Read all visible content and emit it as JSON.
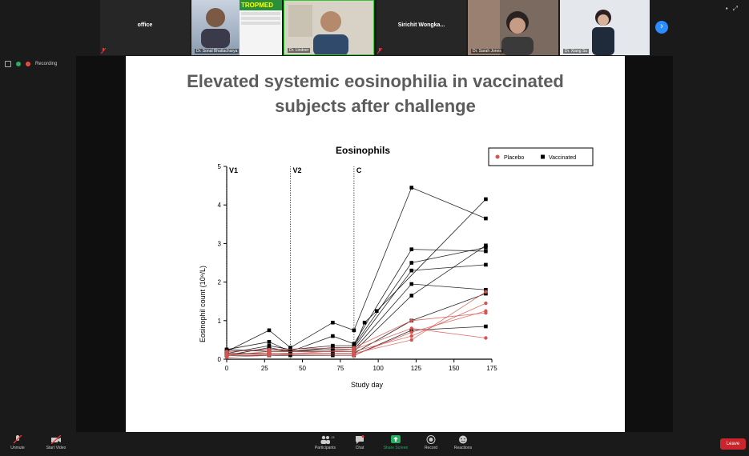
{
  "gallery": {
    "tiles": [
      {
        "name": "office"
      },
      {
        "caption": "Dr. Sonal Bhattacharya"
      },
      {
        "caption": "Dr. Lindner"
      },
      {
        "name": "Sirichit Wongka..."
      },
      {
        "caption": "Dr. Sarah Jones"
      },
      {
        "caption": "Dr. Xiang Su"
      }
    ],
    "tropmed_logo": "TROPMED"
  },
  "recording": {
    "label": "Recording"
  },
  "slide": {
    "title_line1": "Elevated systemic eosinophilia in vaccinated",
    "title_line2": "subjects after challenge"
  },
  "chart_data": {
    "type": "line",
    "title": "Eosinophils",
    "xlabel": "Study day",
    "ylabel": "Eosinophil count (10⁹/L)",
    "xlim": [
      0,
      175
    ],
    "ylim": [
      0,
      5
    ],
    "xticks": [
      "0",
      "25",
      "50",
      "75",
      "100",
      "125",
      "150",
      "175"
    ],
    "yticks": [
      "0",
      "1",
      "2",
      "3",
      "4",
      "5"
    ],
    "legend_position": "top-right",
    "vlines": [
      {
        "x": 0,
        "label": "V1"
      },
      {
        "x": 42,
        "label": "V2"
      },
      {
        "x": 84,
        "label": "C"
      }
    ],
    "colors": {
      "placebo": "#d9534f",
      "vaccinated": "#000000"
    },
    "series": [
      {
        "name": "Placebo",
        "group": "placebo",
        "points": [
          [
            0,
            0.12
          ],
          [
            28,
            0.15
          ],
          [
            84,
            0.15
          ],
          [
            122,
            0.5
          ],
          [
            171,
            1.75
          ]
        ]
      },
      {
        "name": "Placebo",
        "group": "placebo",
        "points": [
          [
            0,
            0.1
          ],
          [
            28,
            0.2
          ],
          [
            84,
            0.2
          ],
          [
            122,
            0.6
          ],
          [
            171,
            1.45
          ]
        ]
      },
      {
        "name": "Placebo",
        "group": "placebo",
        "points": [
          [
            0,
            0.15
          ],
          [
            28,
            0.12
          ],
          [
            84,
            0.1
          ],
          [
            122,
            0.7
          ],
          [
            171,
            1.25
          ]
        ]
      },
      {
        "name": "Placebo",
        "group": "placebo",
        "points": [
          [
            0,
            0.05
          ],
          [
            28,
            0.1
          ],
          [
            84,
            0.25
          ],
          [
            122,
            0.8
          ],
          [
            171,
            0.55
          ]
        ]
      },
      {
        "name": "Placebo",
        "group": "placebo",
        "points": [
          [
            0,
            0.2
          ],
          [
            28,
            0.25
          ],
          [
            84,
            0.3
          ],
          [
            122,
            1.0
          ],
          [
            171,
            1.2
          ]
        ]
      },
      {
        "name": "Vaccinated",
        "group": "vaccinated",
        "points": [
          [
            0,
            0.2
          ],
          [
            28,
            0.75
          ],
          [
            42,
            0.3
          ],
          [
            70,
            0.95
          ],
          [
            84,
            0.75
          ],
          [
            122,
            4.45
          ],
          [
            171,
            3.65
          ]
        ]
      },
      {
        "name": "Vaccinated",
        "group": "vaccinated",
        "points": [
          [
            0,
            0.25
          ],
          [
            28,
            0.45
          ],
          [
            42,
            0.2
          ],
          [
            70,
            0.6
          ],
          [
            84,
            0.4
          ],
          [
            122,
            2.85
          ],
          [
            171,
            2.8
          ]
        ]
      },
      {
        "name": "Vaccinated",
        "group": "vaccinated",
        "points": [
          [
            0,
            0.15
          ],
          [
            28,
            0.35
          ],
          [
            42,
            0.25
          ],
          [
            70,
            0.35
          ],
          [
            84,
            0.35
          ],
          [
            122,
            2.5
          ],
          [
            171,
            2.9
          ]
        ]
      },
      {
        "name": "Vaccinated",
        "group": "vaccinated",
        "points": [
          [
            0,
            0.1
          ],
          [
            28,
            0.3
          ],
          [
            42,
            0.2
          ],
          [
            70,
            0.3
          ],
          [
            84,
            0.3
          ],
          [
            122,
            2.3
          ],
          [
            171,
            2.45
          ]
        ]
      },
      {
        "name": "Vaccinated",
        "group": "vaccinated",
        "points": [
          [
            0,
            0.2
          ],
          [
            28,
            0.25
          ],
          [
            42,
            0.2
          ],
          [
            70,
            0.25
          ],
          [
            84,
            0.25
          ],
          [
            122,
            1.95
          ],
          [
            171,
            1.8
          ]
        ]
      },
      {
        "name": "Vaccinated",
        "group": "vaccinated",
        "points": [
          [
            0,
            0.25
          ],
          [
            28,
            0.2
          ],
          [
            42,
            0.2
          ],
          [
            70,
            0.2
          ],
          [
            84,
            0.2
          ],
          [
            122,
            1.65
          ],
          [
            171,
            2.95
          ]
        ]
      },
      {
        "name": "Vaccinated",
        "group": "vaccinated",
        "points": [
          [
            0,
            0.15
          ],
          [
            28,
            0.15
          ],
          [
            42,
            0.15
          ],
          [
            70,
            0.15
          ],
          [
            84,
            0.15
          ],
          [
            122,
            1.0
          ],
          [
            171,
            1.7
          ]
        ]
      },
      {
        "name": "Vaccinated",
        "group": "vaccinated",
        "points": [
          [
            0,
            0.1
          ],
          [
            28,
            0.1
          ],
          [
            42,
            0.1
          ],
          [
            70,
            0.1
          ],
          [
            84,
            0.1
          ],
          [
            122,
            0.75
          ],
          [
            171,
            0.85
          ]
        ]
      },
      {
        "name": "Vaccinated",
        "group": "vaccinated",
        "points": [
          [
            84,
            0.3
          ],
          [
            91,
            0.95
          ],
          [
            99,
            1.25
          ],
          [
            171,
            4.15
          ]
        ]
      }
    ]
  },
  "toolbar": {
    "unmute": "Unmute",
    "start_video": "Start Video",
    "participants": "Participants",
    "participants_count": "13",
    "chat": "Chat",
    "share_screen": "Share Screen",
    "record": "Record",
    "reactions": "Reactions",
    "leave": "Leave"
  }
}
